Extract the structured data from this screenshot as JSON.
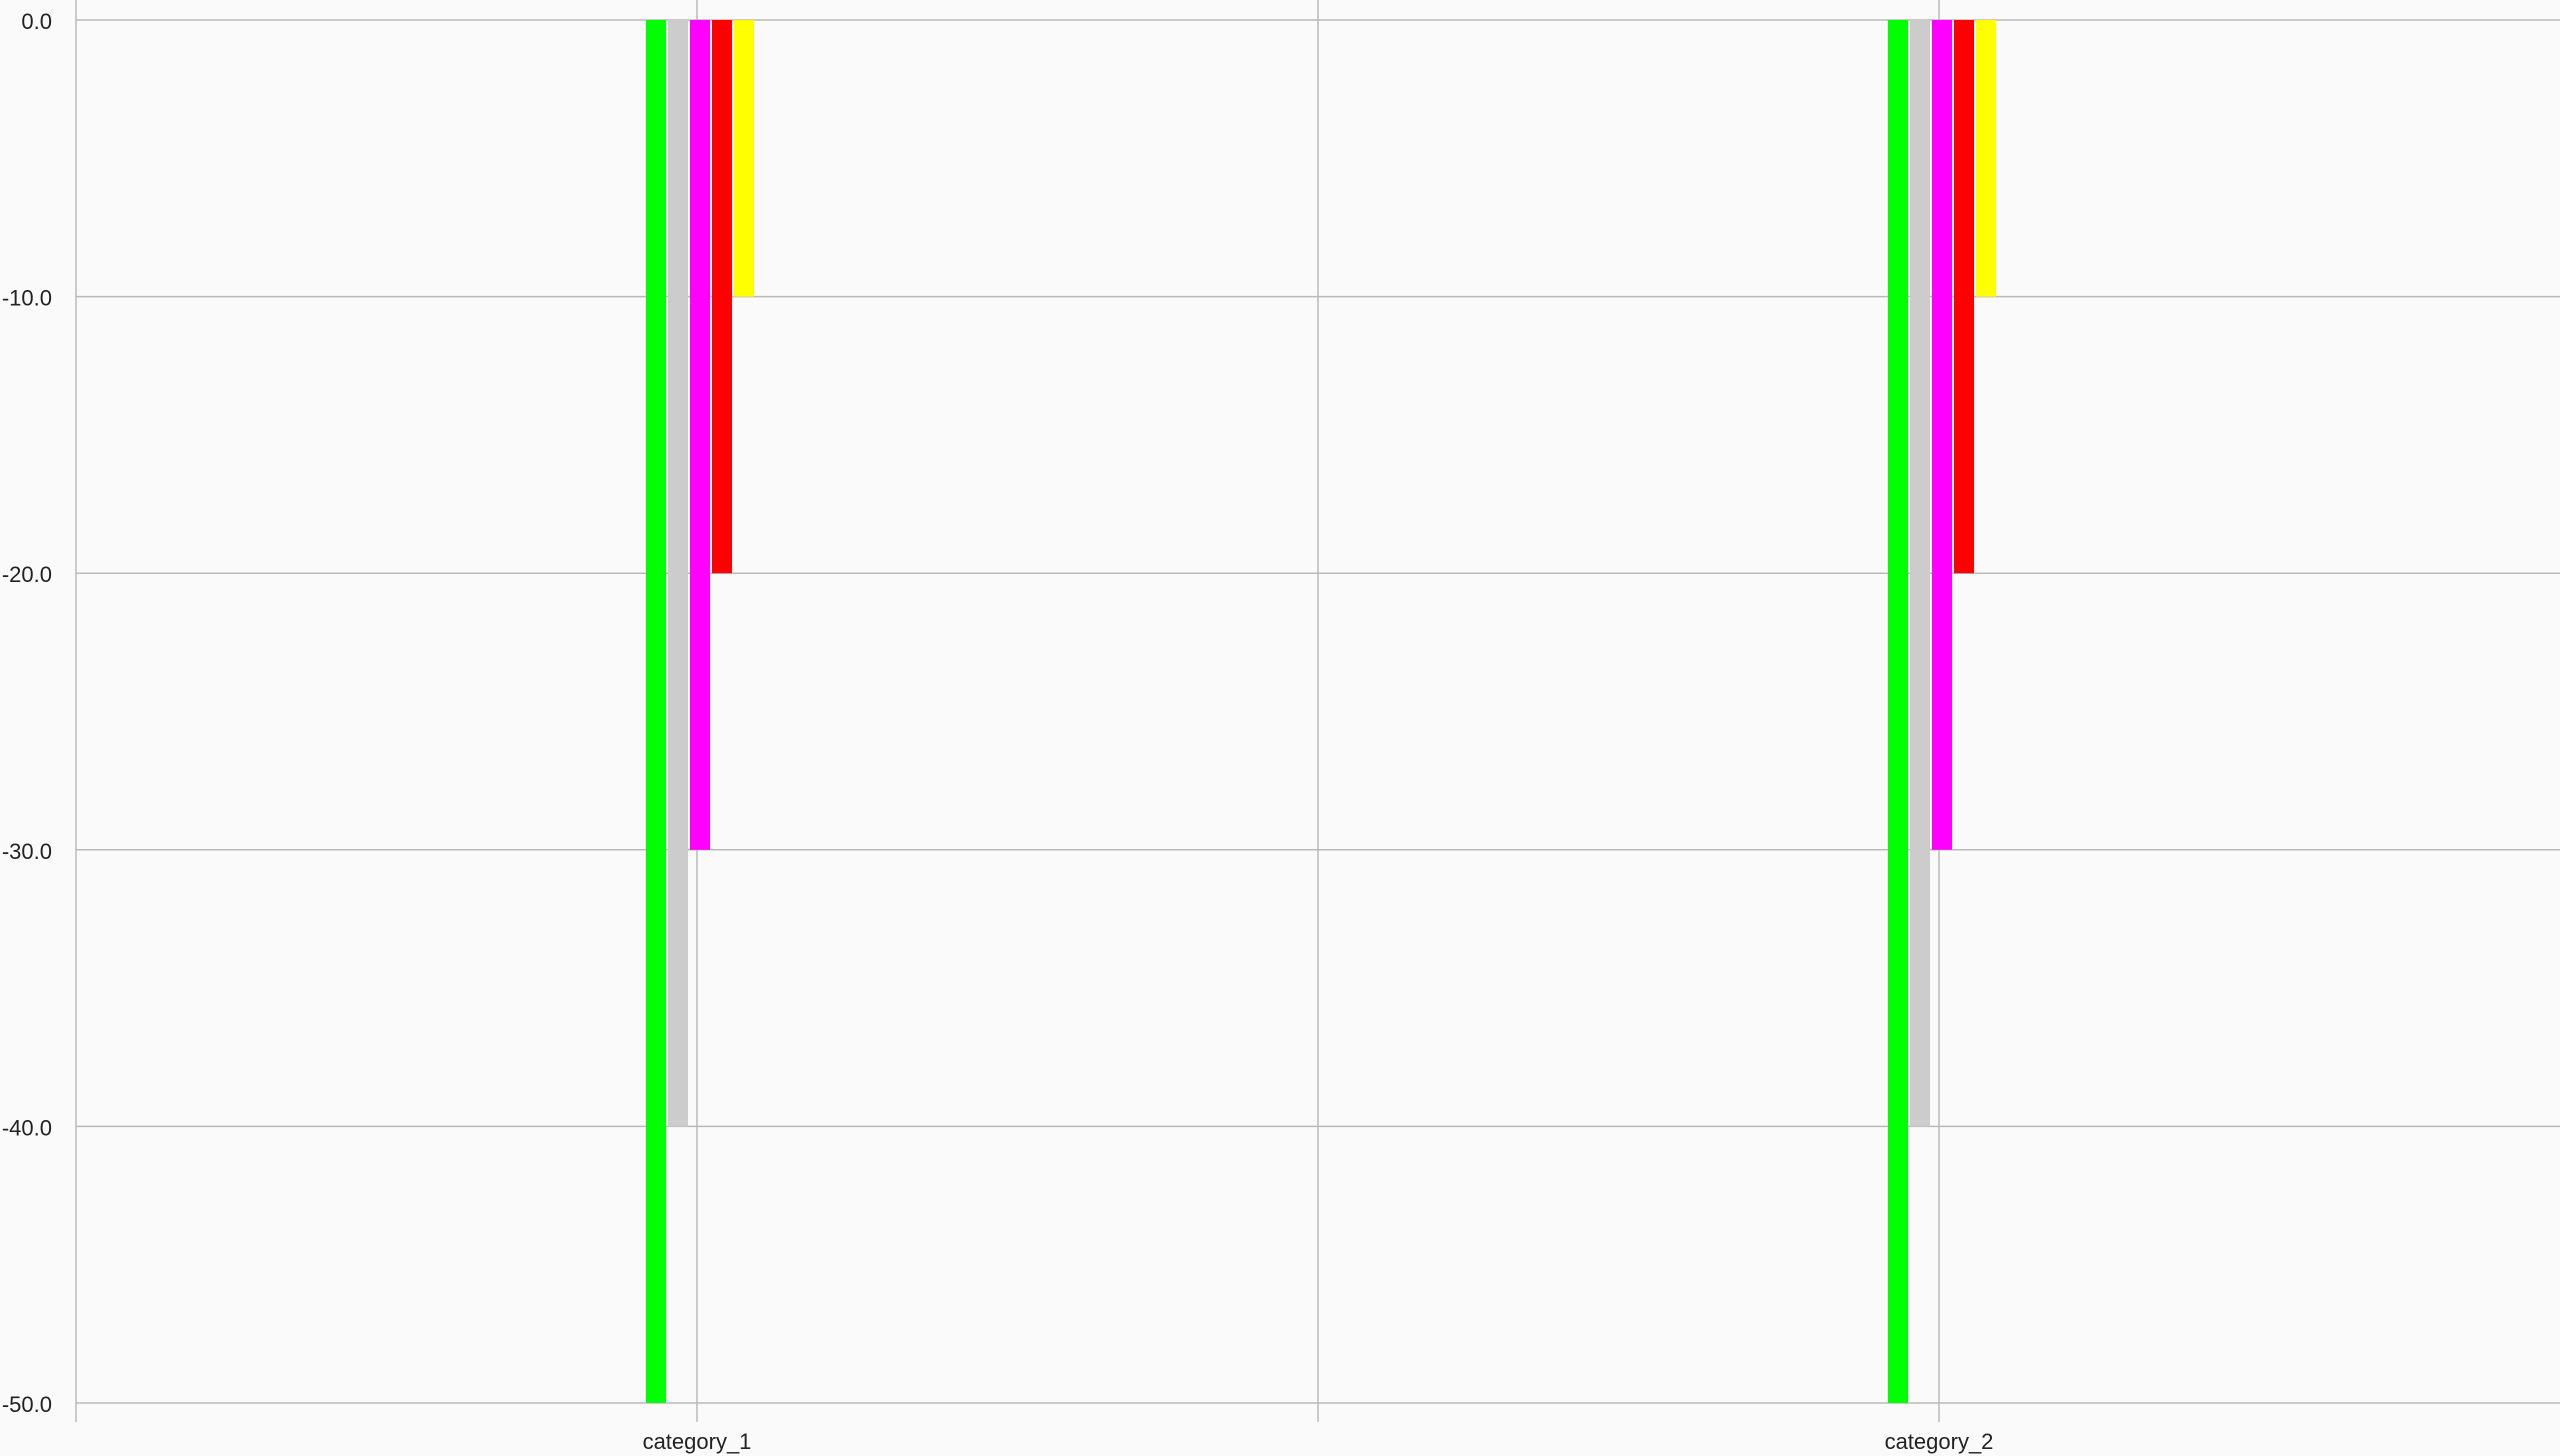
{
  "chart_data": {
    "type": "bar",
    "categories": [
      "category_1",
      "category_2"
    ],
    "series": [
      {
        "values": [
          -50,
          -50
        ],
        "color": "#00ff00"
      },
      {
        "values": [
          -40,
          -40
        ],
        "color": "#cccccc"
      },
      {
        "values": [
          -30,
          -30
        ],
        "color": "#ff00ff"
      },
      {
        "values": [
          -20,
          -20
        ],
        "color": "#ff0000"
      },
      {
        "values": [
          -10,
          -10
        ],
        "color": "#ffff00"
      }
    ],
    "yticks": [
      "0.0",
      "-10.0",
      "-20.0",
      "-30.0",
      "-40.0",
      "-50.0"
    ],
    "ylim": [
      -50,
      0
    ],
    "grid": true,
    "title": "",
    "xlabel": "",
    "ylabel": ""
  }
}
